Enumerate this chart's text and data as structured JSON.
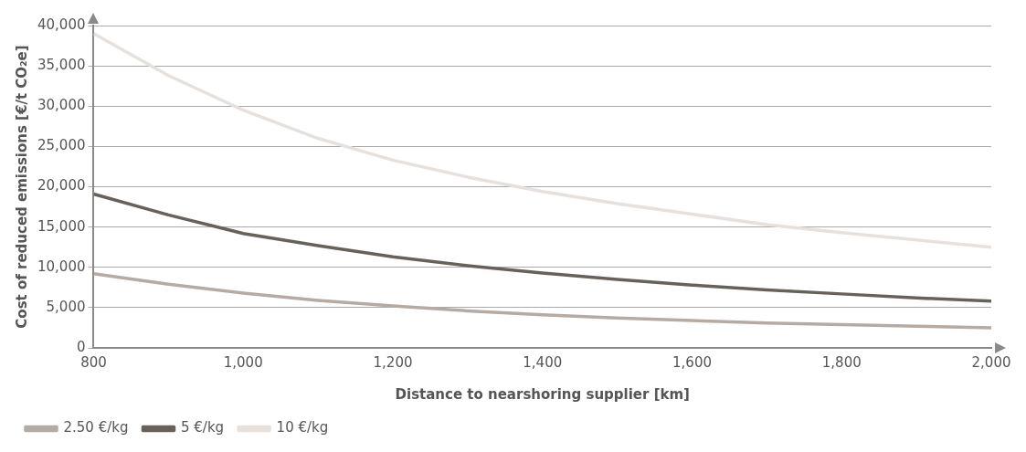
{
  "chart_data": {
    "type": "line",
    "xlabel": "Distance to nearshoring supplier [km]",
    "ylabel": "Cost of reduced emissions [€/t CO₂e]",
    "x": [
      800,
      900,
      1000,
      1100,
      1200,
      1300,
      1400,
      1500,
      1600,
      1700,
      1800,
      1900,
      2000
    ],
    "series": [
      {
        "name": "2.50 €/kg",
        "color": "#b5aba5",
        "values": [
          9200,
          7900,
          6800,
          5900,
          5200,
          4600,
          4100,
          3700,
          3400,
          3100,
          2900,
          2700,
          2500
        ]
      },
      {
        "name": "5 €/kg",
        "color": "#67615c",
        "values": [
          19100,
          16500,
          14200,
          12700,
          11300,
          10200,
          9300,
          8500,
          7800,
          7200,
          6700,
          6200,
          5800
        ]
      },
      {
        "name": "10 €/kg",
        "color": "#e6e1dd",
        "values": [
          39000,
          33800,
          29500,
          26000,
          23300,
          21200,
          19400,
          17900,
          16600,
          15300,
          14300,
          13400,
          12500
        ]
      }
    ],
    "xlim": [
      800,
      2000
    ],
    "xticks": [
      {
        "value": 800,
        "label": "800"
      },
      {
        "value": 1000,
        "label": "1,000"
      },
      {
        "value": 1200,
        "label": "1,200"
      },
      {
        "value": 1400,
        "label": "1,400"
      },
      {
        "value": 1600,
        "label": "1,600"
      },
      {
        "value": 1800,
        "label": "1,800"
      },
      {
        "value": 2000,
        "label": "2,000"
      }
    ],
    "ylim": [
      0,
      40000
    ],
    "yticks": [
      0,
      {
        "value": 5000,
        "label": "5,000"
      },
      {
        "value": 10000,
        "label": "10,000"
      },
      {
        "value": 15000,
        "label": "15,000"
      },
      {
        "value": 20000,
        "label": "20,000"
      },
      {
        "value": 25000,
        "label": "25,000"
      },
      {
        "value": 30000,
        "label": "30,000"
      },
      {
        "value": 35000,
        "label": "35,000"
      },
      {
        "value": 40000,
        "label": "40,000"
      }
    ],
    "grid": "y",
    "legend": "bottom left",
    "marker": "none",
    "line_style": "solid"
  }
}
